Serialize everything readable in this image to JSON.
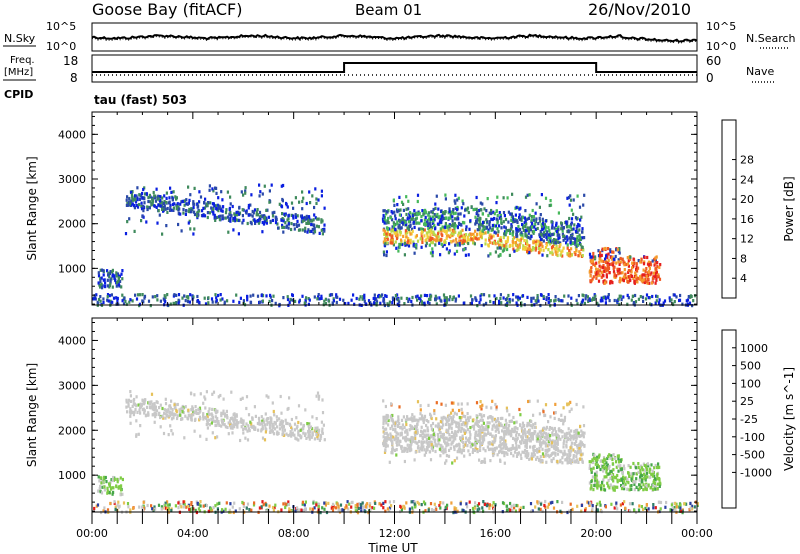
{
  "header": {
    "station": "Goose Bay (fitACF)",
    "beam": "Beam 01",
    "date": "26/Nov/2010"
  },
  "top_panel": {
    "left_labels": {
      "nsky": "N.Sky",
      "freq_line1": "Freq.",
      "freq_line2": "[MHz]",
      "cpid": "CPID"
    },
    "right_labels": {
      "nsearch": "N.Search",
      "nave": "Nave"
    },
    "nsky_ticks": [
      "10^5",
      "10^0"
    ],
    "freq_ticks": [
      "18",
      "8"
    ],
    "nave_ticks": [
      "60",
      "0"
    ],
    "cpid_text": "tau (fast) 503"
  },
  "colors": {
    "power_scale": [
      "#0a1fe0",
      "#2a49a8",
      "#3f8a5c",
      "#46b85a",
      "#b9d94a",
      "#f2cf3a",
      "#f59a2c",
      "#f05a22",
      "#e51e1e"
    ],
    "velocity_scale": [
      "#2a3fa0",
      "#2f7c67",
      "#46a64a",
      "#7fcc45",
      "#c8c8c8",
      "#c8c8c8",
      "#e6c15a",
      "#f0a03a",
      "#ea6e26",
      "#e21a1a"
    ]
  },
  "chart_data": [
    {
      "type": "heatmap",
      "title": "Power",
      "xlabel": "Time UT",
      "ylabel": "Slant Range [km]",
      "x_ticks": [
        "00:00",
        "04:00",
        "08:00",
        "12:00",
        "16:00",
        "20:00",
        "00:00"
      ],
      "xlim_hours": [
        0,
        24
      ],
      "ylim_km": [
        180,
        4500
      ],
      "y_ticks": [
        1000,
        2000,
        3000,
        4000
      ],
      "colorbar": {
        "label": "Power [dB]",
        "ticks": [
          "4",
          "8",
          "12",
          "16",
          "20",
          "24",
          "28"
        ]
      },
      "scatter_regions": [
        {
          "time_hr": [
            0.2,
            1.2
          ],
          "range_km": [
            600,
            1000
          ],
          "level": "low"
        },
        {
          "time_hr": [
            1.3,
            9.2
          ],
          "range_km": [
            1800,
            2900
          ],
          "level": "low"
        },
        {
          "time_hr": [
            11.5,
            19.5
          ],
          "range_km": [
            1300,
            2700
          ],
          "level": "medium-high"
        },
        {
          "time_hr": [
            19.7,
            22.5
          ],
          "range_km": [
            700,
            1500
          ],
          "level": "high"
        },
        {
          "time_hr": [
            0,
            24
          ],
          "range_km": [
            200,
            450
          ],
          "level": "low"
        }
      ]
    },
    {
      "type": "heatmap",
      "title": "Velocity",
      "xlabel": "Time UT",
      "ylabel": "Slant Range [km]",
      "x_ticks": [
        "00:00",
        "04:00",
        "08:00",
        "12:00",
        "16:00",
        "20:00",
        "00:00"
      ],
      "xlim_hours": [
        0,
        24
      ],
      "ylim_km": [
        180,
        4500
      ],
      "y_ticks": [
        1000,
        2000,
        3000,
        4000
      ],
      "colorbar": {
        "label": "Velocity [m s^-1]",
        "ticks": [
          "1000",
          "500",
          "100",
          "25",
          "-25",
          "-100",
          "-500",
          "-1000"
        ]
      },
      "scatter_regions": [
        {
          "time_hr": [
            0.2,
            1.2
          ],
          "range_km": [
            600,
            1000
          ],
          "level": "positive"
        },
        {
          "time_hr": [
            1.3,
            9.2
          ],
          "range_km": [
            1800,
            2900
          ],
          "level": "near-zero"
        },
        {
          "time_hr": [
            11.5,
            19.5
          ],
          "range_km": [
            1300,
            2700
          ],
          "level": "near-zero"
        },
        {
          "time_hr": [
            19.7,
            22.5
          ],
          "range_km": [
            700,
            1500
          ],
          "level": "positive"
        },
        {
          "time_hr": [
            0,
            24
          ],
          "range_km": [
            200,
            450
          ],
          "level": "mixed"
        }
      ]
    }
  ]
}
